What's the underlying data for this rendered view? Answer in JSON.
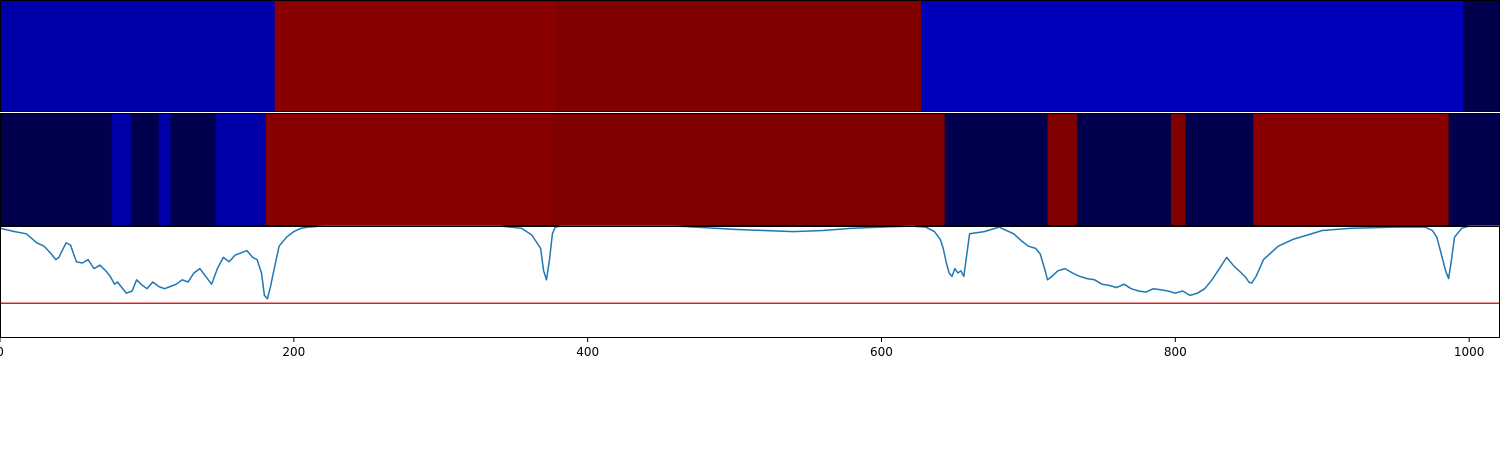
{
  "chart_data": [
    {
      "type": "heatmap",
      "panel": "top",
      "xlim": [
        0,
        1021
      ],
      "segments": [
        {
          "start": 0,
          "end": 187,
          "color": "#0000a8"
        },
        {
          "start": 187,
          "end": 378,
          "color": "#880000"
        },
        {
          "start": 378,
          "end": 627,
          "color": "#800000"
        },
        {
          "start": 627,
          "end": 996,
          "color": "#0000bb"
        },
        {
          "start": 996,
          "end": 1021,
          "color": "#00004c"
        }
      ]
    },
    {
      "type": "heatmap",
      "panel": "middle",
      "xlim": [
        0,
        1021
      ],
      "segments": [
        {
          "start": 0,
          "end": 76,
          "color": "#00004c"
        },
        {
          "start": 76,
          "end": 89,
          "color": "#0000a8"
        },
        {
          "start": 89,
          "end": 108,
          "color": "#00004c"
        },
        {
          "start": 108,
          "end": 116,
          "color": "#0000a8"
        },
        {
          "start": 116,
          "end": 147,
          "color": "#00004c"
        },
        {
          "start": 147,
          "end": 181,
          "color": "#0000a8"
        },
        {
          "start": 181,
          "end": 376,
          "color": "#880000"
        },
        {
          "start": 376,
          "end": 643,
          "color": "#800000"
        },
        {
          "start": 643,
          "end": 713,
          "color": "#00004c"
        },
        {
          "start": 713,
          "end": 733,
          "color": "#800000"
        },
        {
          "start": 733,
          "end": 797,
          "color": "#00004c"
        },
        {
          "start": 797,
          "end": 807,
          "color": "#800000"
        },
        {
          "start": 807,
          "end": 853,
          "color": "#00004c"
        },
        {
          "start": 853,
          "end": 986,
          "color": "#880000"
        },
        {
          "start": 986,
          "end": 1021,
          "color": "#00004c"
        }
      ]
    },
    {
      "type": "line",
      "panel": "bottom",
      "xlim": [
        0,
        1021
      ],
      "ylim": [
        0,
        1
      ],
      "xticks": [
        {
          "value": 0,
          "label": "0"
        },
        {
          "value": 200,
          "label": "200"
        },
        {
          "value": 400,
          "label": "400"
        },
        {
          "value": 600,
          "label": "600"
        },
        {
          "value": 800,
          "label": "800"
        },
        {
          "value": 1000,
          "label": "1000"
        }
      ],
      "threshold": {
        "value": 0.31,
        "color": "#d62728"
      },
      "series": [
        {
          "color": "#1f77b4",
          "x": [
            0,
            10,
            18,
            25,
            30,
            35,
            38,
            40,
            45,
            48,
            52,
            56,
            60,
            64,
            68,
            72,
            75,
            78,
            80,
            83,
            86,
            90,
            93,
            96,
            100,
            104,
            108,
            112,
            116,
            120,
            124,
            128,
            132,
            136,
            140,
            144,
            148,
            152,
            156,
            160,
            164,
            168,
            172,
            175,
            178,
            180,
            182,
            184,
            186,
            190,
            195,
            200,
            205,
            210,
            220,
            260,
            300,
            340,
            355,
            362,
            368,
            370,
            372,
            374,
            376,
            378,
            382,
            390,
            420,
            460,
            500,
            520,
            540,
            560,
            580,
            600,
            620,
            630,
            636,
            640,
            642,
            644,
            646,
            648,
            650,
            652,
            654,
            656,
            660,
            670,
            680,
            690,
            695,
            700,
            705,
            708,
            711,
            713,
            716,
            720,
            725,
            730,
            735,
            740,
            745,
            750,
            755,
            760,
            765,
            770,
            775,
            780,
            785,
            790,
            795,
            800,
            805,
            810,
            815,
            820,
            825,
            830,
            835,
            840,
            845,
            848,
            850,
            852,
            855,
            860,
            870,
            880,
            890,
            900,
            920,
            950,
            970,
            975,
            978,
            980,
            982,
            984,
            986,
            988,
            990,
            995,
            1000,
            1010,
            1021
          ],
          "y": [
            0.98,
            0.95,
            0.93,
            0.85,
            0.82,
            0.75,
            0.7,
            0.72,
            0.85,
            0.83,
            0.68,
            0.67,
            0.7,
            0.62,
            0.65,
            0.6,
            0.55,
            0.48,
            0.5,
            0.45,
            0.4,
            0.42,
            0.52,
            0.48,
            0.44,
            0.5,
            0.46,
            0.44,
            0.46,
            0.48,
            0.52,
            0.5,
            0.58,
            0.62,
            0.55,
            0.48,
            0.62,
            0.72,
            0.68,
            0.74,
            0.76,
            0.78,
            0.72,
            0.7,
            0.58,
            0.38,
            0.35,
            0.45,
            0.58,
            0.82,
            0.9,
            0.95,
            0.98,
            0.99,
            1.0,
            1.0,
            1.0,
            1.0,
            0.98,
            0.92,
            0.8,
            0.6,
            0.52,
            0.7,
            0.93,
            0.99,
            1.0,
            1.0,
            1.0,
            1.0,
            0.97,
            0.96,
            0.95,
            0.96,
            0.98,
            0.99,
            1.0,
            0.99,
            0.95,
            0.88,
            0.8,
            0.68,
            0.58,
            0.55,
            0.62,
            0.58,
            0.6,
            0.55,
            0.93,
            0.95,
            0.99,
            0.93,
            0.87,
            0.82,
            0.8,
            0.75,
            0.62,
            0.52,
            0.55,
            0.6,
            0.62,
            0.58,
            0.55,
            0.53,
            0.52,
            0.48,
            0.47,
            0.45,
            0.48,
            0.44,
            0.42,
            0.41,
            0.44,
            0.43,
            0.42,
            0.4,
            0.42,
            0.38,
            0.4,
            0.44,
            0.52,
            0.62,
            0.72,
            0.64,
            0.58,
            0.54,
            0.5,
            0.49,
            0.55,
            0.7,
            0.82,
            0.88,
            0.92,
            0.96,
            0.98,
            0.99,
            0.99,
            0.96,
            0.9,
            0.8,
            0.7,
            0.6,
            0.53,
            0.7,
            0.9,
            0.98,
            1.0,
            1.0,
            1.0
          ]
        }
      ]
    }
  ]
}
